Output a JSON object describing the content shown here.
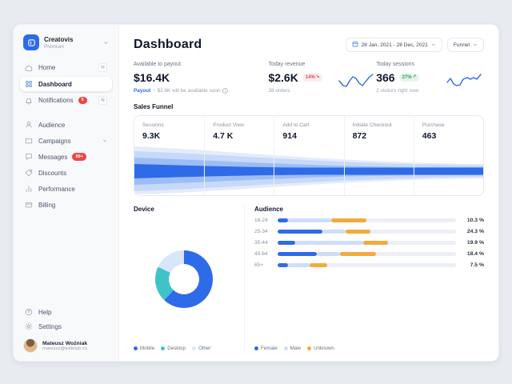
{
  "app": {
    "name": "Creatovis",
    "plan": "Premium"
  },
  "sidebar": {
    "items": [
      {
        "label": "Home",
        "shortcut": "H"
      },
      {
        "label": "Dashboard"
      },
      {
        "label": "Notifications",
        "badge": "5",
        "shortcut": "N"
      },
      {
        "label": "Audience"
      },
      {
        "label": "Campaigns"
      },
      {
        "label": "Messages",
        "badge": "99+"
      },
      {
        "label": "Discounts"
      },
      {
        "label": "Performance"
      },
      {
        "label": "Billing"
      }
    ],
    "help": "Help",
    "settings": "Settings",
    "user": {
      "name": "Mateusz Woźniak",
      "email": "mateusz@widelab.co"
    }
  },
  "header": {
    "title": "Dashboard",
    "date_range": "28 Jan, 2021 - 28 Dec, 2021",
    "view_filter": "Funnel"
  },
  "stats": [
    {
      "label": "Available to payout",
      "value": "$16.4K",
      "link": "Payout",
      "note": "$2.6K will be available soon"
    },
    {
      "label": "Today revenue",
      "value": "$2.6K",
      "change": "14%",
      "direction": "down",
      "note": "28 orders"
    },
    {
      "label": "Today sessions",
      "value": "366",
      "change": "27%",
      "direction": "up",
      "note": "2 visitors right now"
    }
  ],
  "funnel": {
    "title": "Sales Funnel",
    "stages": [
      {
        "label": "Sessions",
        "value": "9.3K"
      },
      {
        "label": "Product View",
        "value": "4.7 K"
      },
      {
        "label": "Add to Cart",
        "value": "914"
      },
      {
        "label": "Initiate Checkout",
        "value": "872"
      },
      {
        "label": "Purchase",
        "value": "463"
      }
    ]
  },
  "device": {
    "title": "Device",
    "segments": [
      {
        "label": "Mobile",
        "value": 62,
        "color": "#2e6be9"
      },
      {
        "label": "Desktop",
        "value": 20,
        "color": "#3fc3c9"
      },
      {
        "label": "Other",
        "value": 18,
        "color": "#d9e6fa"
      }
    ]
  },
  "audience": {
    "title": "Audience",
    "colors": [
      "#2e6be9",
      "#cfdef8",
      "#f3aa3c"
    ],
    "legend": [
      "Female",
      "Male",
      "Unknown"
    ],
    "rows": [
      {
        "label": "18-24",
        "pct": "10.3 %",
        "segments": [
          6,
          24,
          20
        ]
      },
      {
        "label": "25-34",
        "pct": "24.3 %",
        "segments": [
          25,
          13,
          14
        ]
      },
      {
        "label": "35-44",
        "pct": "19.9 %",
        "segments": [
          10,
          38,
          14
        ]
      },
      {
        "label": "45-64",
        "pct": "18.4 %",
        "segments": [
          22,
          13,
          20
        ]
      },
      {
        "label": "65+",
        "pct": "7.5 %",
        "segments": [
          6,
          12,
          10
        ]
      }
    ]
  }
}
